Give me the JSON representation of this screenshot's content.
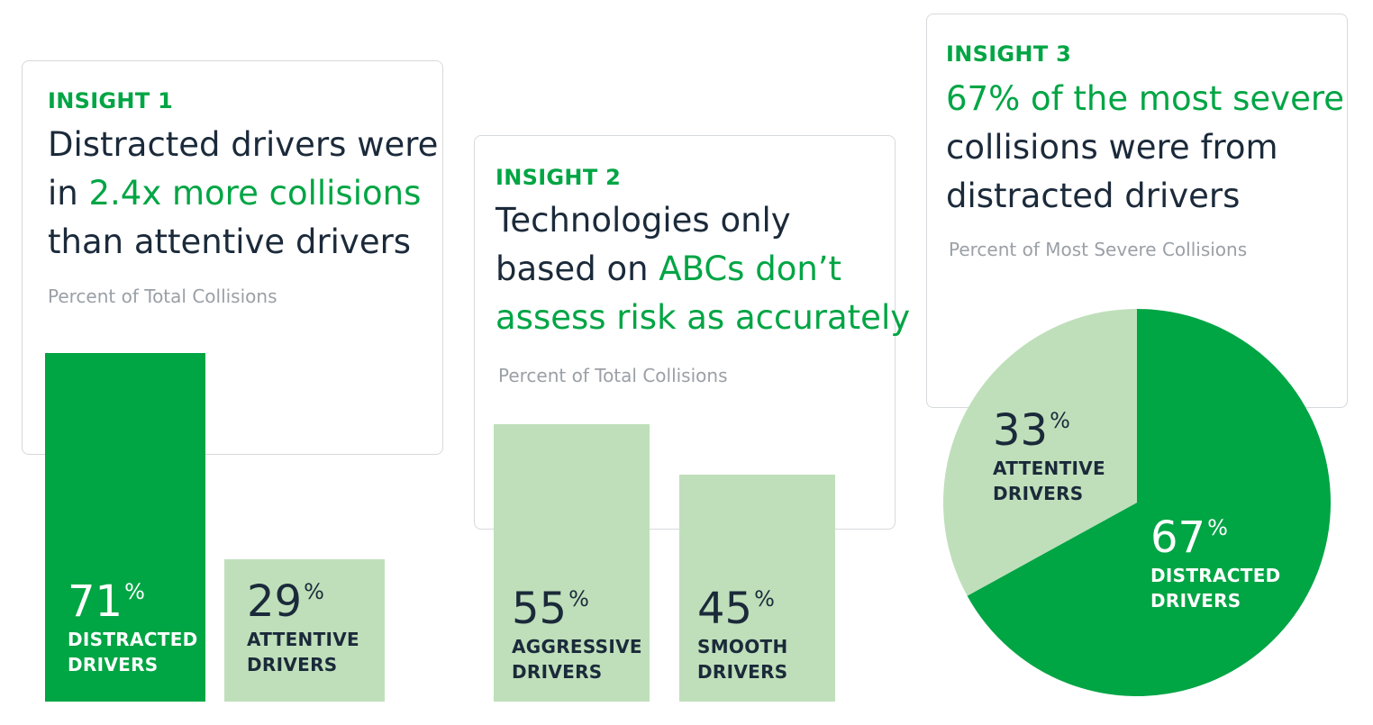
{
  "colors": {
    "green": "#00a544",
    "light_green": "#bfdfba",
    "navy": "#1b2a3a",
    "gray": "#9aa0a6"
  },
  "insight1": {
    "label": "INSIGHT 1",
    "headline": [
      {
        "text": "Distracted drivers were",
        "hl": false
      },
      {
        "text": "in ",
        "hl": false,
        "rest": "2.4x more collisions"
      },
      {
        "text": "than attentive drivers",
        "hl": false
      }
    ],
    "line1": "Distracted drivers were",
    "line2a": "in ",
    "line2b": "2.4x more collisions",
    "line3": "than attentive drivers",
    "subtitle": "Percent of Total Collisions"
  },
  "insight2": {
    "label": "INSIGHT 2",
    "line1": "Technologies only",
    "line2a": "based on ",
    "line2b": "ABCs don’t",
    "line3": "assess risk as accurately",
    "subtitle": "Percent of Total Collisions"
  },
  "insight3": {
    "label": "INSIGHT 3",
    "line1": "67% of the most severe",
    "line2": "collisions were from",
    "line3": "distracted drivers",
    "subtitle": "Percent of Most Severe Collisions"
  },
  "chart_data": [
    {
      "type": "bar",
      "title": "Percent of Total Collisions",
      "ylim": [
        0,
        100
      ],
      "categories": [
        "DISTRACTED DRIVERS",
        "ATTENTIVE DRIVERS"
      ],
      "values": [
        71,
        29
      ],
      "value_labels": [
        "71",
        "29"
      ],
      "unit": "%",
      "cap_lines": [
        [
          "DISTRACTED",
          "DRIVERS"
        ],
        [
          "ATTENTIVE",
          "DRIVERS"
        ]
      ],
      "colors": [
        "#00a544",
        "#bfdfba"
      ]
    },
    {
      "type": "bar",
      "title": "Percent of Total Collisions",
      "ylim": [
        0,
        100
      ],
      "categories": [
        "AGGRESSIVE DRIVERS",
        "SMOOTH DRIVERS"
      ],
      "values": [
        55,
        45
      ],
      "value_labels": [
        "55",
        "45"
      ],
      "unit": "%",
      "cap_lines": [
        [
          "AGGRESSIVE",
          "DRIVERS"
        ],
        [
          "SMOOTH",
          "DRIVERS"
        ]
      ],
      "colors": [
        "#bfdfba",
        "#bfdfba"
      ]
    },
    {
      "type": "pie",
      "title": "Percent of Most Severe Collisions",
      "categories": [
        "DISTRACTED DRIVERS",
        "ATTENTIVE DRIVERS"
      ],
      "values": [
        67,
        33
      ],
      "value_labels": [
        "67",
        "33"
      ],
      "unit": "%",
      "cap_lines": [
        [
          "DISTRACTED",
          "DRIVERS"
        ],
        [
          "ATTENTIVE",
          "DRIVERS"
        ]
      ],
      "colors": [
        "#00a544",
        "#bfdfba"
      ]
    }
  ]
}
